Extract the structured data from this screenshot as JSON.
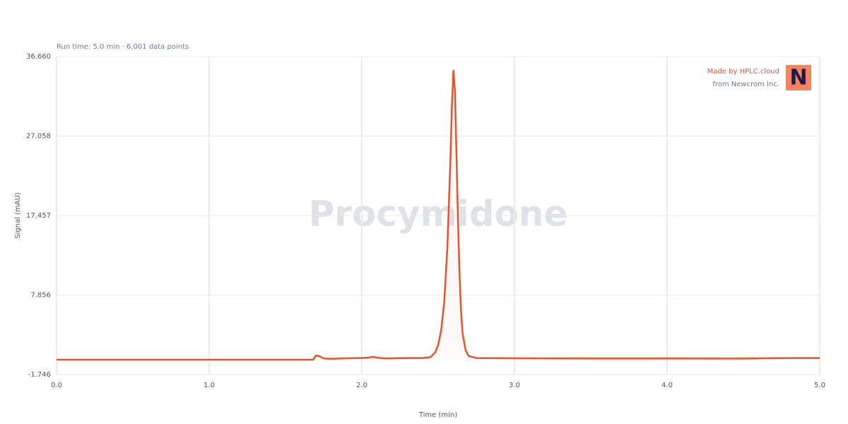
{
  "chart_data": {
    "type": "line",
    "subtitle": "Run time: 5.0 min · 6,001 data points",
    "watermark": "Procymidone",
    "xlabel": "Time (min)",
    "ylabel": "Signal (mAU)",
    "brand": "Made by HPLC.cloud",
    "brand_sub": "from Newcrom Inc.",
    "logo": "N",
    "x": [
      0,
      0.5,
      1.0,
      1.5,
      1.68,
      1.7,
      1.72,
      1.75,
      1.8,
      1.9,
      2.0,
      2.05,
      2.07,
      2.1,
      2.15,
      2.2,
      2.3,
      2.4,
      2.45,
      2.48,
      2.5,
      2.52,
      2.54,
      2.56,
      2.58,
      2.59,
      2.6,
      2.61,
      2.62,
      2.63,
      2.64,
      2.65,
      2.66,
      2.68,
      2.7,
      2.75,
      3.0,
      3.5,
      4.0,
      4.5,
      4.8,
      5.0
    ],
    "series": [
      {
        "name": "Signal",
        "color": "#e8532a",
        "values": [
          0.05,
          0.05,
          0.05,
          0.05,
          0.05,
          0.55,
          0.5,
          0.2,
          0.15,
          0.22,
          0.25,
          0.3,
          0.4,
          0.3,
          0.2,
          0.22,
          0.25,
          0.25,
          0.35,
          0.9,
          1.8,
          3.6,
          7.0,
          13.5,
          24.0,
          30.5,
          34.95,
          32.5,
          25.0,
          17.0,
          10.5,
          6.0,
          3.2,
          1.2,
          0.5,
          0.25,
          0.22,
          0.2,
          0.2,
          0.18,
          0.25,
          0.25
        ]
      }
    ],
    "xlim": [
      0,
      5
    ],
    "xticks": [
      {
        "value": 0,
        "label": "0.0"
      },
      {
        "value": 1,
        "label": "1.0"
      },
      {
        "value": 2,
        "label": "2.0"
      },
      {
        "value": 3,
        "label": "3.0"
      },
      {
        "value": 4,
        "label": "4.0"
      },
      {
        "value": 5,
        "label": "5.0"
      }
    ],
    "ylim": [
      -1.746,
      36.66
    ],
    "yticks": [
      -1.746,
      7.856,
      17.457,
      27.058,
      {
        "value": 36.66,
        "label": "36.660"
      }
    ],
    "grid": true
  }
}
